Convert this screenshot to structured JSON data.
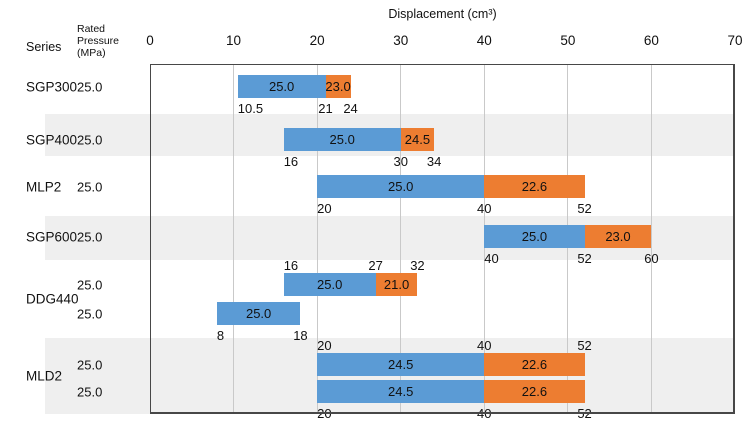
{
  "title": "Displacement (cm³)",
  "column_headers": {
    "series": "Series",
    "pressure_lines": [
      "Rated",
      "Pressure",
      "(MPa)"
    ]
  },
  "colors": {
    "blue": "#5B9BD5",
    "orange": "#ED7D31",
    "band_shade": "#EFEFEF",
    "gridline": "#C9C9C9",
    "plot_border": "#474747",
    "text": "#111111"
  },
  "chart_data": {
    "type": "bar",
    "subtype": "horizontal-stacked-range",
    "title": "Displacement (cm³)",
    "xlabel": "Displacement (cm³)",
    "xlim": [
      0,
      70
    ],
    "axis_ticks": [
      {
        "value": 0,
        "label": "0"
      },
      {
        "value": 10,
        "label": "10"
      },
      {
        "value": 20,
        "label": "20"
      },
      {
        "value": 30,
        "label": "30"
      },
      {
        "value": 40,
        "label": "40"
      },
      {
        "value": 50,
        "label": "50"
      },
      {
        "value": 60,
        "label": "60"
      },
      {
        "value": 70,
        "label": "70"
      }
    ],
    "grid": true,
    "legend": false,
    "rows": [
      {
        "series": "SGP300",
        "shaded": false,
        "entries": [
          {
            "pressure": "25.0",
            "segments": [
              {
                "color": "blue",
                "from": 10.5,
                "to": 21,
                "label": "25.0"
              },
              {
                "color": "orange",
                "from": 21,
                "to": 24,
                "label": "23.0"
              }
            ],
            "ticks": {
              "position": "below",
              "marks": [
                {
                  "text": "10.5",
                  "at": 10.5,
                  "align": "start"
                },
                {
                  "text": "21",
                  "at": 21,
                  "align": "center"
                },
                {
                  "text": "24",
                  "at": 24,
                  "align": "center"
                }
              ]
            }
          }
        ]
      },
      {
        "series": "SGP400",
        "shaded": true,
        "entries": [
          {
            "pressure": "25.0",
            "segments": [
              {
                "color": "blue",
                "from": 16,
                "to": 30,
                "label": "25.0"
              },
              {
                "color": "orange",
                "from": 30,
                "to": 34,
                "label": "24.5"
              }
            ],
            "ticks": {
              "position": "below",
              "marks": [
                {
                  "text": "16",
                  "at": 16,
                  "align": "start"
                },
                {
                  "text": "30",
                  "at": 30,
                  "align": "center"
                },
                {
                  "text": "34",
                  "at": 34,
                  "align": "center"
                }
              ]
            }
          }
        ]
      },
      {
        "series": "MLP2",
        "shaded": false,
        "entries": [
          {
            "pressure": "25.0",
            "segments": [
              {
                "color": "blue",
                "from": 20,
                "to": 40,
                "label": "25.0"
              },
              {
                "color": "orange",
                "from": 40,
                "to": 52,
                "label": "22.6"
              }
            ],
            "ticks": {
              "position": "below",
              "marks": [
                {
                  "text": "20",
                  "at": 20,
                  "align": "start"
                },
                {
                  "text": "40",
                  "at": 40,
                  "align": "center"
                },
                {
                  "text": "52",
                  "at": 52,
                  "align": "center"
                }
              ]
            }
          }
        ]
      },
      {
        "series": "SGP600",
        "shaded": true,
        "entries": [
          {
            "pressure": "25.0",
            "segments": [
              {
                "color": "blue",
                "from": 40,
                "to": 52,
                "label": "25.0"
              },
              {
                "color": "orange",
                "from": 52,
                "to": 60,
                "label": "23.0"
              }
            ],
            "ticks": {
              "position": "below",
              "marks": [
                {
                  "text": "40",
                  "at": 40,
                  "align": "start"
                },
                {
                  "text": "52",
                  "at": 52,
                  "align": "center"
                },
                {
                  "text": "60",
                  "at": 60,
                  "align": "center"
                }
              ]
            }
          }
        ]
      },
      {
        "series": "DDG440",
        "shaded": false,
        "entries": [
          {
            "pressure": "25.0",
            "segments": [
              {
                "color": "blue",
                "from": 16,
                "to": 27,
                "label": "25.0"
              },
              {
                "color": "orange",
                "from": 27,
                "to": 32,
                "label": "21.0"
              }
            ],
            "ticks": {
              "position": "above",
              "marks": [
                {
                  "text": "16",
                  "at": 16,
                  "align": "start"
                },
                {
                  "text": "27",
                  "at": 27,
                  "align": "center"
                },
                {
                  "text": "32",
                  "at": 32,
                  "align": "center"
                }
              ]
            }
          },
          {
            "pressure": "25.0",
            "segments": [
              {
                "color": "blue",
                "from": 8,
                "to": 18,
                "label": "25.0"
              }
            ],
            "ticks": {
              "position": "below",
              "marks": [
                {
                  "text": "8",
                  "at": 8,
                  "align": "start"
                },
                {
                  "text": "18",
                  "at": 18,
                  "align": "center"
                }
              ]
            }
          }
        ]
      },
      {
        "series": "MLD2",
        "shaded": true,
        "entries": [
          {
            "pressure": "25.0",
            "segments": [
              {
                "color": "blue",
                "from": 20,
                "to": 40,
                "label": "24.5"
              },
              {
                "color": "orange",
                "from": 40,
                "to": 52,
                "label": "22.6"
              }
            ],
            "ticks": {
              "position": "above",
              "marks": [
                {
                  "text": "20",
                  "at": 20,
                  "align": "start"
                },
                {
                  "text": "40",
                  "at": 40,
                  "align": "center"
                },
                {
                  "text": "52",
                  "at": 52,
                  "align": "center"
                }
              ]
            }
          },
          {
            "pressure": "25.0",
            "segments": [
              {
                "color": "blue",
                "from": 20,
                "to": 40,
                "label": "24.5"
              },
              {
                "color": "orange",
                "from": 40,
                "to": 52,
                "label": "22.6"
              }
            ],
            "ticks": {
              "position": "below",
              "marks": [
                {
                  "text": "20",
                  "at": 20,
                  "align": "start"
                },
                {
                  "text": "40",
                  "at": 40,
                  "align": "center"
                },
                {
                  "text": "52",
                  "at": 52,
                  "align": "center"
                }
              ]
            }
          }
        ]
      }
    ]
  }
}
